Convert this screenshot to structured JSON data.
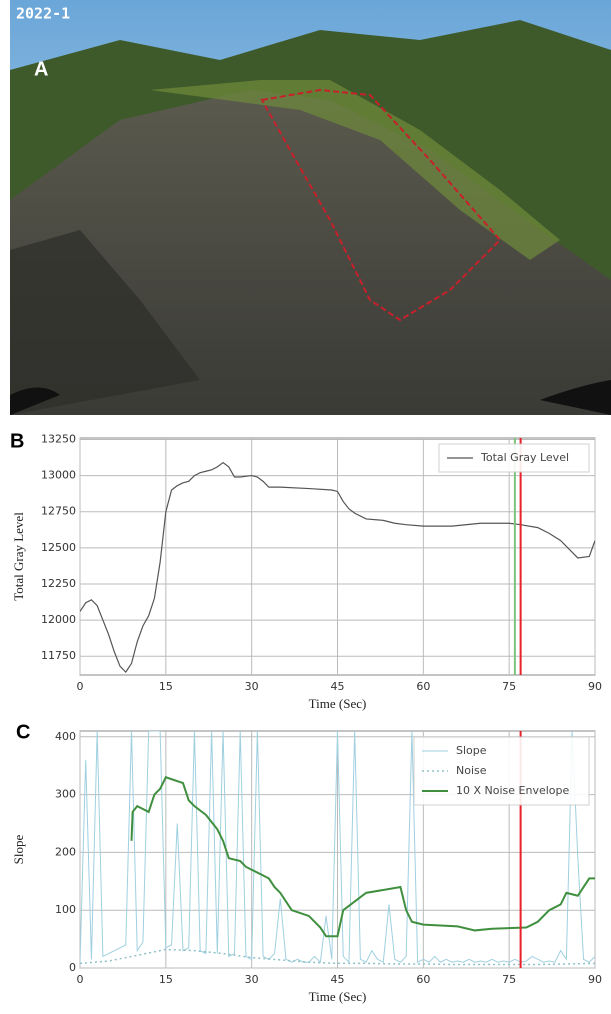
{
  "panel_labels": [
    "A",
    "B",
    "C"
  ],
  "photo": {
    "timestamp": "2022-1"
  },
  "chart_data": [
    {
      "type": "line",
      "ylabel": "Total Gray Level",
      "xlabel": "Time (Sec)",
      "xlim": [
        0,
        90
      ],
      "xticks": [
        0,
        15,
        30,
        45,
        60,
        75,
        90
      ],
      "ylim": [
        11620,
        13260
      ],
      "yticks": [
        11750,
        12000,
        12250,
        12500,
        12750,
        13000,
        13250
      ],
      "grid": true,
      "legend": "upper right",
      "series": [
        {
          "name": "Total Gray Level",
          "color": "#555555",
          "x": [
            0,
            1,
            2,
            3,
            4,
            5,
            6,
            7,
            8,
            9,
            10,
            11,
            12,
            13,
            14,
            15,
            16,
            17,
            18,
            19,
            20,
            21,
            22,
            23,
            24,
            25,
            26,
            27,
            28,
            30,
            31,
            32,
            33,
            35,
            40,
            44,
            45,
            46,
            47,
            48,
            50,
            53,
            55,
            57,
            60,
            65,
            70,
            75,
            77,
            80,
            82,
            84,
            86,
            87,
            89,
            90
          ],
          "values": [
            12060,
            12120,
            12140,
            12100,
            12000,
            11900,
            11780,
            11680,
            11640,
            11700,
            11850,
            11960,
            12030,
            12150,
            12400,
            12750,
            12900,
            12930,
            12950,
            12960,
            13000,
            13020,
            13030,
            13040,
            13060,
            13090,
            13060,
            12990,
            12990,
            13000,
            12990,
            12960,
            12920,
            12920,
            12910,
            12900,
            12890,
            12820,
            12770,
            12740,
            12700,
            12690,
            12670,
            12660,
            12650,
            12650,
            12670,
            12670,
            12660,
            12640,
            12600,
            12550,
            12470,
            12430,
            12440,
            12550
          ]
        }
      ],
      "vlines": [
        {
          "x": 76,
          "color": "#7cc47c"
        },
        {
          "x": 77,
          "color": "#e8202a"
        }
      ]
    },
    {
      "type": "line",
      "ylabel": "Slope",
      "xlabel": "Time (Sec)",
      "xlim": [
        0,
        90
      ],
      "xticks": [
        0,
        15,
        30,
        45,
        60,
        75,
        90
      ],
      "ylim": [
        0,
        410
      ],
      "yticks": [
        0,
        100,
        200,
        300,
        400
      ],
      "grid": true,
      "legend": "upper right",
      "series": [
        {
          "name": "Slope",
          "color": "#9fd0e0",
          "dash": "none",
          "width": 1,
          "x": [
            0,
            1,
            2,
            3,
            4,
            5,
            6,
            7,
            8,
            9,
            10,
            11,
            12,
            13,
            14,
            15,
            16,
            17,
            18,
            19,
            20,
            21,
            22,
            23,
            24,
            25,
            26,
            27,
            28,
            29,
            30,
            31,
            32,
            33,
            34,
            35,
            36,
            37,
            38,
            39,
            40,
            41,
            42,
            43,
            44,
            45,
            46,
            47,
            48,
            49,
            50,
            51,
            52,
            53,
            54,
            55,
            56,
            57,
            58,
            59,
            60,
            61,
            62,
            63,
            64,
            65,
            66,
            67,
            68,
            69,
            70,
            71,
            72,
            73,
            74,
            75,
            76,
            77,
            78,
            79,
            80,
            81,
            82,
            83,
            84,
            85,
            86,
            87,
            88,
            89,
            90
          ],
          "values": [
            10,
            360,
            15,
            410,
            20,
            25,
            30,
            35,
            40,
            410,
            30,
            45,
            410,
            410,
            410,
            35,
            40,
            250,
            30,
            35,
            410,
            30,
            25,
            410,
            25,
            410,
            20,
            25,
            410,
            20,
            15,
            410,
            20,
            15,
            25,
            120,
            15,
            10,
            15,
            10,
            10,
            20,
            10,
            90,
            15,
            410,
            20,
            10,
            410,
            15,
            10,
            30,
            15,
            10,
            110,
            15,
            10,
            20,
            410,
            10,
            15,
            10,
            20,
            10,
            15,
            10,
            12,
            10,
            15,
            10,
            12,
            10,
            15,
            10,
            12,
            10,
            15,
            10,
            12,
            20,
            15,
            10,
            12,
            10,
            30,
            15,
            410,
            190,
            15,
            10,
            20
          ]
        },
        {
          "name": "Noise",
          "color": "#8fc0c8",
          "dash": "2,3",
          "width": 1.5,
          "x": [
            0,
            5,
            10,
            15,
            20,
            25,
            30,
            35,
            40,
            45,
            50,
            55,
            60,
            65,
            70,
            75,
            80,
            85,
            90
          ],
          "values": [
            8,
            12,
            22,
            32,
            30,
            25,
            18,
            14,
            10,
            8,
            8,
            7,
            7,
            6,
            6,
            6,
            6,
            7,
            8
          ]
        },
        {
          "name": "10 X Noise Envelope",
          "color": "#3f8f3f",
          "dash": "none",
          "width": 2,
          "x": [
            9,
            9.2,
            10,
            12,
            13,
            14,
            15,
            18,
            19,
            20,
            22,
            24,
            25,
            26,
            28,
            29,
            30,
            33,
            34,
            35,
            37,
            40,
            42,
            43,
            45,
            46,
            50,
            56,
            57,
            58,
            60,
            66,
            69,
            72,
            78,
            80,
            82,
            84,
            85,
            87,
            89,
            90
          ],
          "values": [
            220,
            270,
            280,
            270,
            300,
            310,
            330,
            320,
            290,
            280,
            265,
            240,
            220,
            190,
            185,
            175,
            170,
            155,
            140,
            130,
            100,
            90,
            70,
            55,
            55,
            100,
            130,
            140,
            100,
            80,
            75,
            72,
            65,
            68,
            70,
            80,
            100,
            110,
            130,
            125,
            155,
            155
          ]
        }
      ],
      "vlines": [
        {
          "x": 77,
          "color": "#e8202a"
        }
      ]
    }
  ]
}
